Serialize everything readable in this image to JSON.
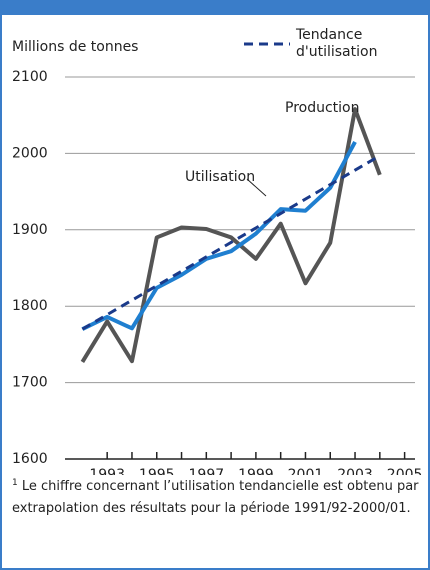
{
  "chart_data": {
    "type": "line",
    "ylabel": "Millions de tonnes",
    "x": [
      1992,
      1993,
      1994,
      1995,
      1996,
      1997,
      1998,
      1999,
      2000,
      2001,
      2002,
      2003,
      2004
    ],
    "series": [
      {
        "name": "Production",
        "color": "#555555",
        "values": [
          1727,
          1780,
          1728,
          1890,
          1903,
          1901,
          1890,
          1862,
          1908,
          1830,
          1883,
          2058,
          1972
        ]
      },
      {
        "name": "Utilisation",
        "color": "#1f7fd0",
        "values": [
          1770,
          1786,
          1771,
          1824,
          1841,
          1862,
          1872,
          1895,
          1927,
          1925,
          1955,
          2015,
          null
        ]
      }
    ],
    "trend": {
      "name": "Tendance d'utilisation",
      "color": "#1a3a8a",
      "x": [
        1992,
        2004
      ],
      "values": [
        1770,
        1997
      ]
    },
    "xlim": [
      1991.5,
      2005.5
    ],
    "xticks": [
      1993,
      1995,
      1997,
      1999,
      2001,
      2003,
      2005
    ],
    "ylim": [
      1600,
      2100
    ],
    "yticks": [
      1600,
      1700,
      1800,
      1900,
      2000,
      2100
    ],
    "grid": true,
    "footnote_mark": "1",
    "footnote": "Le chiffre concernant l’utilisation tendancielle est obtenu par extrapolation des résultats pour la période 1991/92-2000/01."
  }
}
